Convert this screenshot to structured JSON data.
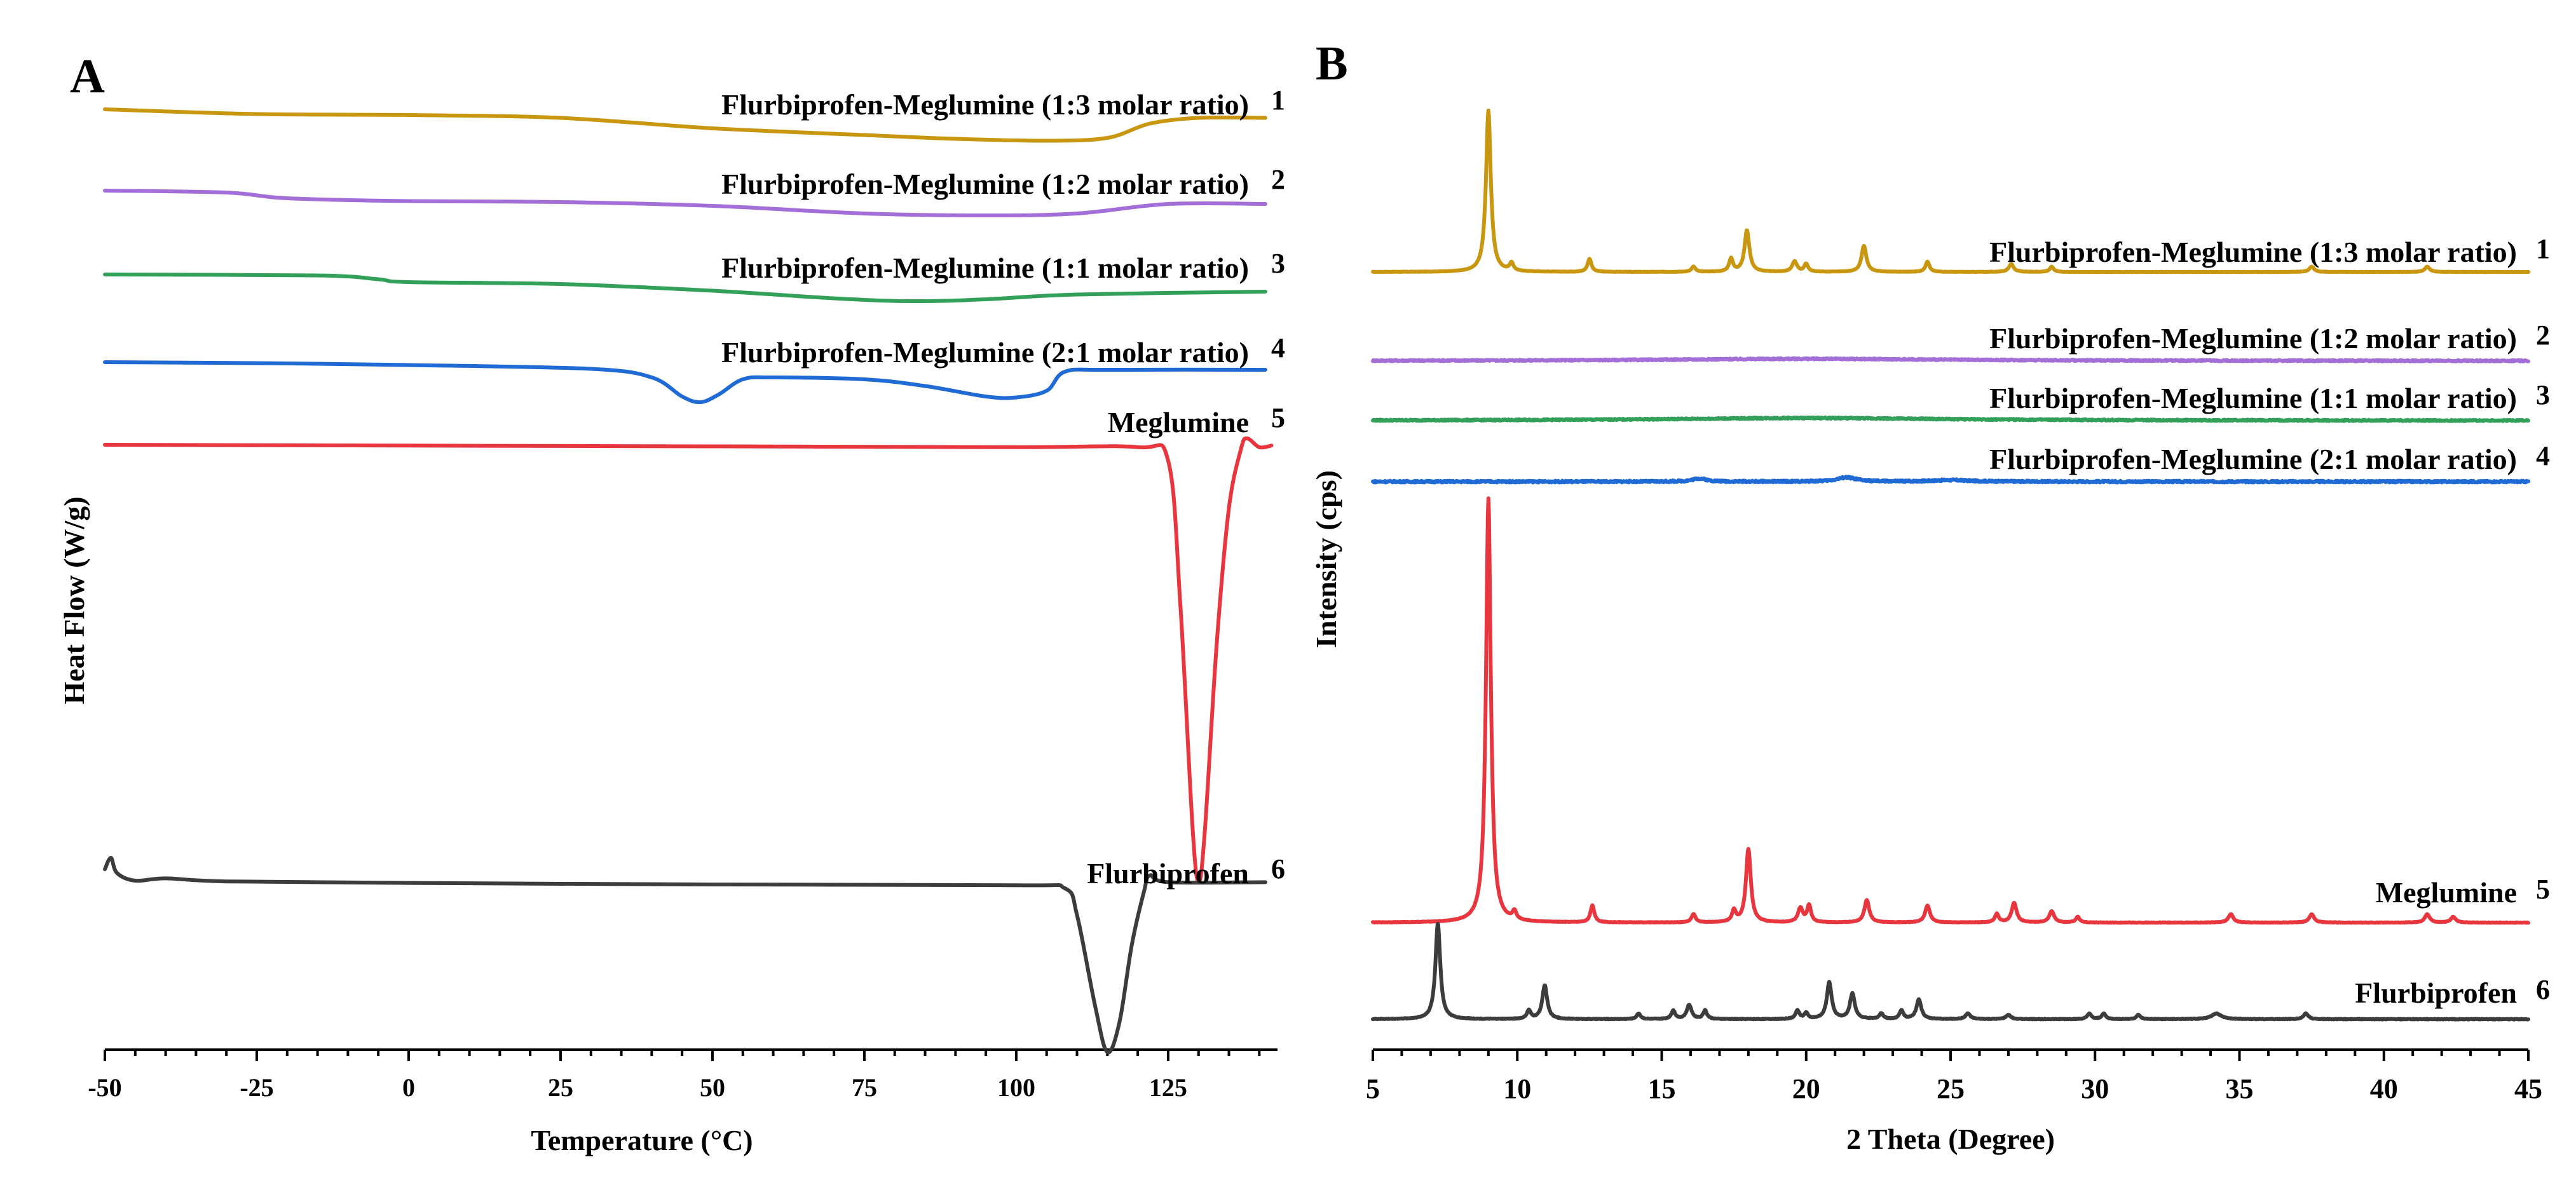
{
  "chart_data": [
    {
      "panel": "A",
      "type": "line",
      "xlabel": "Temperature (°C)",
      "ylabel": "Heat Flow (W/g)",
      "xlim": [
        -50,
        143
      ],
      "x_ticks": [
        -50,
        -25,
        0,
        25,
        50,
        75,
        100,
        125
      ],
      "y_ticks_shown": false,
      "grid": false,
      "legend": "inline labels at right end of each trace",
      "series": [
        {
          "name": "Flurbiprofen-Meglumine (1:3 molar ratio)",
          "number": "1",
          "color": "#c8960f",
          "points": [
            [
              -50,
              0.0
            ],
            [
              -25,
              0.5
            ],
            [
              0,
              0.6
            ],
            [
              25,
              0.9
            ],
            [
              50,
              2.0
            ],
            [
              75,
              2.7
            ],
            [
              90,
              3.1
            ],
            [
              105,
              3.3
            ],
            [
              115,
              3.0
            ],
            [
              122,
              1.5
            ],
            [
              130,
              0.9
            ],
            [
              141,
              0.9
            ]
          ]
        },
        {
          "name": "Flurbiprofen-Meglumine (1:2 molar ratio)",
          "number": "2",
          "color": "#a46ed8",
          "points": [
            [
              -50,
              0.0
            ],
            [
              -30,
              0.2
            ],
            [
              -20,
              0.8
            ],
            [
              0,
              1.1
            ],
            [
              25,
              1.2
            ],
            [
              50,
              1.6
            ],
            [
              75,
              2.4
            ],
            [
              95,
              2.6
            ],
            [
              110,
              2.4
            ],
            [
              125,
              1.4
            ],
            [
              141,
              1.4
            ]
          ]
        },
        {
          "name": "Flurbiprofen-Meglumine (1:1 molar ratio)",
          "number": "3",
          "color": "#33a05a",
          "points": [
            [
              -50,
              0.0
            ],
            [
              -15,
              0.1
            ],
            [
              -5,
              0.5
            ],
            [
              0,
              0.8
            ],
            [
              25,
              1.0
            ],
            [
              50,
              1.7
            ],
            [
              70,
              2.5
            ],
            [
              83,
              2.8
            ],
            [
              95,
              2.6
            ],
            [
              110,
              2.1
            ],
            [
              141,
              1.8
            ]
          ]
        },
        {
          "name": "Flurbiprofen-Meglumine (2:1 molar ratio)",
          "number": "4",
          "color": "#1f6ad4",
          "points": [
            [
              -50,
              0.0
            ],
            [
              -25,
              0.1
            ],
            [
              0,
              0.3
            ],
            [
              30,
              0.7
            ],
            [
              40,
              1.6
            ],
            [
              45,
              3.6
            ],
            [
              48,
              4.2
            ],
            [
              51,
              3.4
            ],
            [
              55,
              1.8
            ],
            [
              60,
              1.6
            ],
            [
              75,
              1.8
            ],
            [
              85,
              2.5
            ],
            [
              95,
              3.6
            ],
            [
              100,
              3.7
            ],
            [
              105,
              3.0
            ],
            [
              108,
              1.0
            ],
            [
              115,
              0.8
            ],
            [
              141,
              0.8
            ]
          ]
        },
        {
          "name": "Meglumine",
          "number": "5",
          "color": "#e8363e",
          "points": [
            [
              -50,
              0.0
            ],
            [
              0,
              0.1
            ],
            [
              50,
              0.2
            ],
            [
              100,
              0.3
            ],
            [
              120,
              0.3
            ],
            [
              125,
              2.0
            ],
            [
              127,
              20.0
            ],
            [
              129,
              48.0
            ],
            [
              130,
              55.0
            ],
            [
              131,
              49.0
            ],
            [
              133,
              25.0
            ],
            [
              135,
              8.0
            ],
            [
              137,
              0.5
            ],
            [
              138,
              -0.8
            ],
            [
              140,
              0.3
            ],
            [
              142,
              0.1
            ]
          ]
        },
        {
          "name": "Flurbiprofen",
          "number": "6",
          "color": "#3c3c3c",
          "points": [
            [
              -50,
              0.0
            ],
            [
              -49,
              -1.5
            ],
            [
              -48,
              0.5
            ],
            [
              -45,
              1.5
            ],
            [
              -40,
              1.2
            ],
            [
              -30,
              1.6
            ],
            [
              0,
              1.8
            ],
            [
              50,
              2.0
            ],
            [
              100,
              2.1
            ],
            [
              108,
              2.5
            ],
            [
              110,
              6.0
            ],
            [
              113,
              18.0
            ],
            [
              115,
              24.0
            ],
            [
              117,
              20.0
            ],
            [
              119,
              10.0
            ],
            [
              121,
              3.0
            ],
            [
              122,
              0.8
            ],
            [
              125,
              1.7
            ],
            [
              141,
              1.7
            ]
          ]
        }
      ]
    },
    {
      "panel": "B",
      "type": "line",
      "xlabel": "2 Theta (Degree)",
      "ylabel": "Intensity (cps)",
      "xlim": [
        5,
        45
      ],
      "x_ticks": [
        5,
        10,
        15,
        20,
        25,
        30,
        35,
        40,
        45
      ],
      "y_ticks_shown": false,
      "grid": false,
      "legend": "inline labels at right end of each trace",
      "series": [
        {
          "name": "Flurbiprofen-Meglumine (1:3 molar ratio)",
          "number": "1",
          "color": "#c8960f",
          "noise": 0.06,
          "peaks": [
            [
              9.0,
              62,
              0.1
            ],
            [
              9.8,
              3,
              0.08
            ],
            [
              12.5,
              5,
              0.08
            ],
            [
              16.1,
              2,
              0.08
            ],
            [
              17.4,
              5,
              0.08
            ],
            [
              17.95,
              16,
              0.1
            ],
            [
              19.6,
              4,
              0.1
            ],
            [
              20.0,
              3,
              0.08
            ],
            [
              22.0,
              10,
              0.1
            ],
            [
              24.2,
              4,
              0.08
            ],
            [
              27.1,
              3,
              0.1
            ],
            [
              28.5,
              2,
              0.08
            ],
            [
              37.5,
              2,
              0.1
            ],
            [
              41.5,
              2,
              0.1
            ]
          ]
        },
        {
          "name": "Flurbiprofen-Meglumine (1:2 molar ratio)",
          "number": "2",
          "color": "#a46ed8",
          "noise": 0.25,
          "peaks": [
            [
              20.0,
              0.8,
              6.0
            ]
          ]
        },
        {
          "name": "Flurbiprofen-Meglumine (1:1 molar ratio)",
          "number": "3",
          "color": "#33a05a",
          "noise": 0.25,
          "peaks": [
            [
              20.0,
              1.0,
              6.0
            ]
          ]
        },
        {
          "name": "Flurbiprofen-Meglumine (2:1 molar ratio)",
          "number": "4",
          "color": "#1f6ad4",
          "noise": 0.35,
          "peaks": [
            [
              16.3,
              1.2,
              0.3
            ],
            [
              21.4,
              1.6,
              0.4
            ],
            [
              25.0,
              0.6,
              0.8
            ]
          ]
        },
        {
          "name": "Meglumine",
          "number": "5",
          "color": "#e8363e",
          "noise": 0.08,
          "peaks": [
            [
              9.0,
              150,
              0.1
            ],
            [
              9.9,
              3,
              0.08
            ],
            [
              12.6,
              6,
              0.08
            ],
            [
              16.1,
              3,
              0.08
            ],
            [
              17.5,
              4,
              0.08
            ],
            [
              18.0,
              26,
              0.1
            ],
            [
              19.8,
              5,
              0.1
            ],
            [
              20.1,
              6,
              0.08
            ],
            [
              22.1,
              8,
              0.1
            ],
            [
              24.2,
              6,
              0.1
            ],
            [
              26.6,
              3,
              0.08
            ],
            [
              27.2,
              7,
              0.1
            ],
            [
              28.5,
              4,
              0.1
            ],
            [
              29.4,
              2,
              0.08
            ],
            [
              34.7,
              3,
              0.1
            ],
            [
              37.5,
              3,
              0.1
            ],
            [
              41.5,
              3,
              0.1
            ],
            [
              42.4,
              2,
              0.1
            ]
          ]
        },
        {
          "name": "Flurbiprofen",
          "number": "6",
          "color": "#3c3c3c",
          "noise": 0.12,
          "peaks": [
            [
              7.25,
              34,
              0.1
            ],
            [
              10.4,
              3,
              0.08
            ],
            [
              10.95,
              12,
              0.1
            ],
            [
              14.2,
              2,
              0.08
            ],
            [
              15.4,
              3,
              0.08
            ],
            [
              15.95,
              5,
              0.1
            ],
            [
              16.5,
              3,
              0.08
            ],
            [
              19.7,
              3,
              0.08
            ],
            [
              20.0,
              2,
              0.08
            ],
            [
              20.8,
              13,
              0.1
            ],
            [
              21.6,
              9,
              0.1
            ],
            [
              22.6,
              2,
              0.08
            ],
            [
              23.3,
              3,
              0.08
            ],
            [
              23.9,
              7,
              0.1
            ],
            [
              25.6,
              2,
              0.1
            ],
            [
              27.0,
              1.5,
              0.1
            ],
            [
              29.8,
              2,
              0.08
            ],
            [
              30.3,
              2,
              0.08
            ],
            [
              31.5,
              1.5,
              0.08
            ],
            [
              34.2,
              2,
              0.2
            ],
            [
              37.3,
              2,
              0.1
            ]
          ]
        }
      ]
    }
  ],
  "panels": [
    {
      "letter": "A"
    },
    {
      "letter": "B"
    }
  ]
}
